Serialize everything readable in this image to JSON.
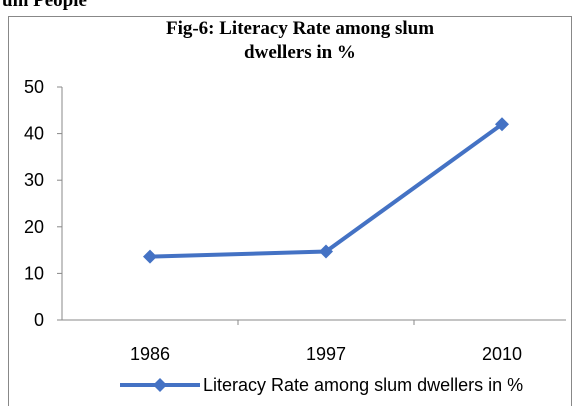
{
  "page_heading": "um People",
  "chart_data": {
    "type": "line",
    "title": [
      "Fig-6: Literacy Rate among slum",
      "dwellers in %"
    ],
    "categories": [
      "1986",
      "1997",
      "2010"
    ],
    "series": [
      {
        "name": "Literacy Rate among slum dwellers in %",
        "color": "#4472c4",
        "values": [
          13.6,
          14.7,
          42
        ]
      }
    ],
    "ylim": [
      0,
      50
    ],
    "yticks": [
      0,
      10,
      20,
      30,
      40,
      50
    ],
    "grid": false,
    "legend": "bottom"
  }
}
